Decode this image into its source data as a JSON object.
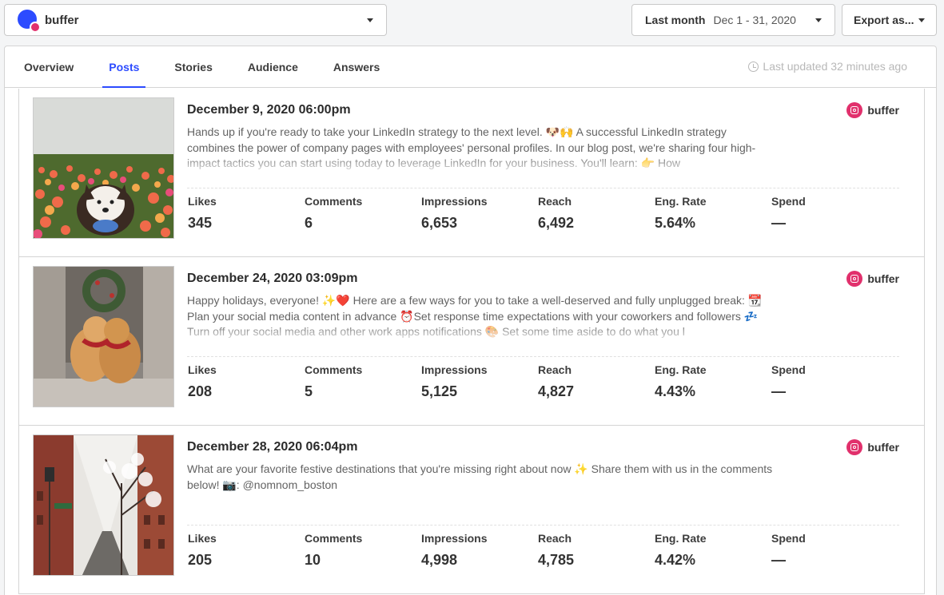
{
  "header": {
    "account_name": "buffer",
    "date_label": "Last month",
    "date_range": "Dec 1 - 31, 2020",
    "export_label": "Export as..."
  },
  "tabs": [
    {
      "label": "Overview",
      "active": false
    },
    {
      "label": "Posts",
      "active": true
    },
    {
      "label": "Stories",
      "active": false
    },
    {
      "label": "Audience",
      "active": false
    },
    {
      "label": "Answers",
      "active": false
    }
  ],
  "last_updated": "Last updated 32 minutes ago",
  "metric_labels": [
    "Likes",
    "Comments",
    "Impressions",
    "Reach",
    "Eng. Rate",
    "Spend"
  ],
  "posts": [
    {
      "date": "December 9, 2020 06:00pm",
      "text": "Hands up if you're ready to take your LinkedIn strategy to the next level. 🐶🙌 A successful LinkedIn strategy combines the power of company pages with employees' personal profiles. In our blog post, we're sharing four high-impact tactics you can start using today to leverage LinkedIn for your business. You'll learn: 👉 How",
      "channel": "buffer",
      "image": "dog in tulip field",
      "metrics": [
        "345",
        "6",
        "6,653",
        "6,492",
        "5.64%",
        "—"
      ]
    },
    {
      "date": "December 24, 2020 03:09pm",
      "text": "Happy holidays, everyone! ✨❤️ Here are a few ways for you to take a well-deserved and fully unplugged break: 📆Plan your social media content in advance ⏰Set response time expectations with your coworkers and followers 💤 Turn off your social media and other work apps notifications 🎨 Set some time aside to do what you l",
      "channel": "buffer",
      "image": "two golden retrievers with wreath",
      "metrics": [
        "208",
        "5",
        "5,125",
        "4,827",
        "4.43%",
        "—"
      ]
    },
    {
      "date": "December 28, 2020 06:04pm",
      "text": "What are your favorite festive destinations that you're missing right about now ✨ Share them with us in the comments below! 📷: @nomnom_boston",
      "channel": "buffer",
      "image": "snowy city street",
      "metrics": [
        "205",
        "10",
        "4,998",
        "4,785",
        "4.42%",
        "—"
      ]
    }
  ],
  "colors": {
    "accent": "#2c4bff",
    "instagram": "#e1306c"
  }
}
